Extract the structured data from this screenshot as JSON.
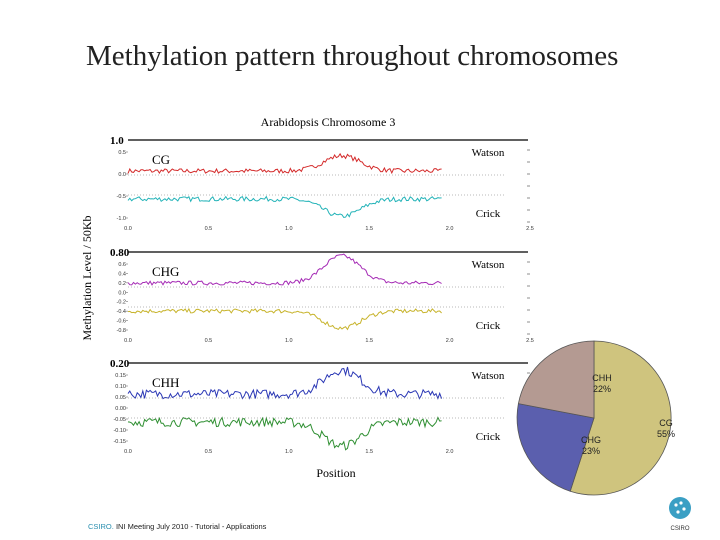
{
  "slide": {
    "title": "Methylation pattern throughout chromosomes",
    "footer_org": "CSIRO.",
    "footer_text": "INI Meeting July 2010 - Tutorial - Applications",
    "logo_label": "CSIRO"
  },
  "chart_data": [
    {
      "type": "line",
      "title": "Arabidopsis Chromosome 3",
      "xlabel": "Position",
      "ylabel": "Methylation Level / 50Kb",
      "xlim": [
        0,
        2.5
      ],
      "x_ticks": [
        "0.0",
        "0.5",
        "1.0",
        "1.5",
        "2.0",
        "2.5"
      ],
      "panels": [
        {
          "context": "CG",
          "max_label": "1.0",
          "y_ticks": [
            "0.5",
            "0.0",
            "-0.5",
            "-1.0"
          ],
          "series": [
            {
              "name": "Watson",
              "color": "#d42a2a",
              "baseline": 0.28,
              "peak": 0.6,
              "noise": 0.05
            },
            {
              "name": "Crick",
              "color": "#23b3b8",
              "baseline": -0.22,
              "peak": -0.58,
              "noise": 0.05
            }
          ]
        },
        {
          "context": "CHG",
          "max_label": "0.80",
          "y_ticks": [
            "0.6",
            "0.4",
            "0.2",
            "0.0",
            "-0.2",
            "-0.4",
            "-0.6",
            "-0.8"
          ],
          "series": [
            {
              "name": "Watson",
              "color": "#a52bb5",
              "baseline": 0.03,
              "peak": 0.55,
              "noise": 0.04
            },
            {
              "name": "Crick",
              "color": "#c7b32a",
              "baseline": -0.05,
              "peak": -0.38,
              "noise": 0.04
            }
          ]
        },
        {
          "context": "CHH",
          "max_label": "0.20",
          "y_ticks": [
            "0.15",
            "0.10",
            "0.05",
            "0.00",
            "-0.05",
            "-0.10",
            "-0.15"
          ],
          "series": [
            {
              "name": "Watson",
              "color": "#2b38b5",
              "baseline": 0.012,
              "peak": 0.075,
              "noise": 0.012
            },
            {
              "name": "Crick",
              "color": "#2f8f32",
              "baseline": -0.012,
              "peak": -0.075,
              "noise": 0.012
            }
          ]
        }
      ]
    },
    {
      "type": "pie",
      "slices": [
        {
          "label": "CG",
          "value": 55,
          "text": "55%",
          "color": "#cfc47e"
        },
        {
          "label": "CHG",
          "value": 23,
          "text": "23%",
          "color": "#5b5fae"
        },
        {
          "label": "CHH",
          "value": 22,
          "text": "22%",
          "color": "#b49a92"
        }
      ]
    }
  ]
}
